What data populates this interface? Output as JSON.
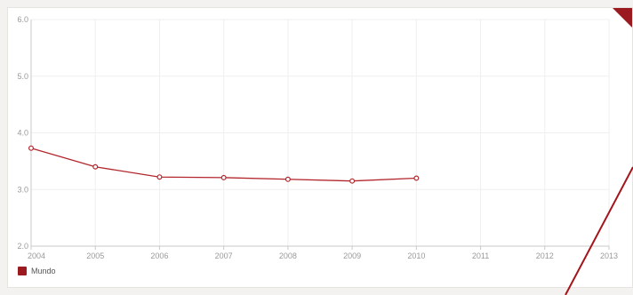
{
  "colors": {
    "series": "#b2262c",
    "accent": "#9b1a1f",
    "annotation": "#a3151b"
  },
  "corner_badge": {
    "icon": "corner-arrow-icon",
    "glyph": "⇱"
  },
  "chart_data": {
    "type": "line",
    "grid": true,
    "legend_position": "bottom-left",
    "x": [
      2004,
      2005,
      2006,
      2007,
      2008,
      2009,
      2010
    ],
    "x_ticks": [
      "2004",
      "2005",
      "2006",
      "2007",
      "2008",
      "2009",
      "2010",
      "2011",
      "2012",
      "2013"
    ],
    "y_ticks": [
      "2.0",
      "3.0",
      "4.0",
      "5.0",
      "6.0"
    ],
    "xlim": [
      2004,
      2013
    ],
    "ylim": [
      2.0,
      6.0
    ],
    "series": [
      {
        "name": "Mundo",
        "values": [
          3.73,
          3.4,
          3.22,
          3.21,
          3.18,
          3.15,
          3.2
        ]
      }
    ]
  }
}
